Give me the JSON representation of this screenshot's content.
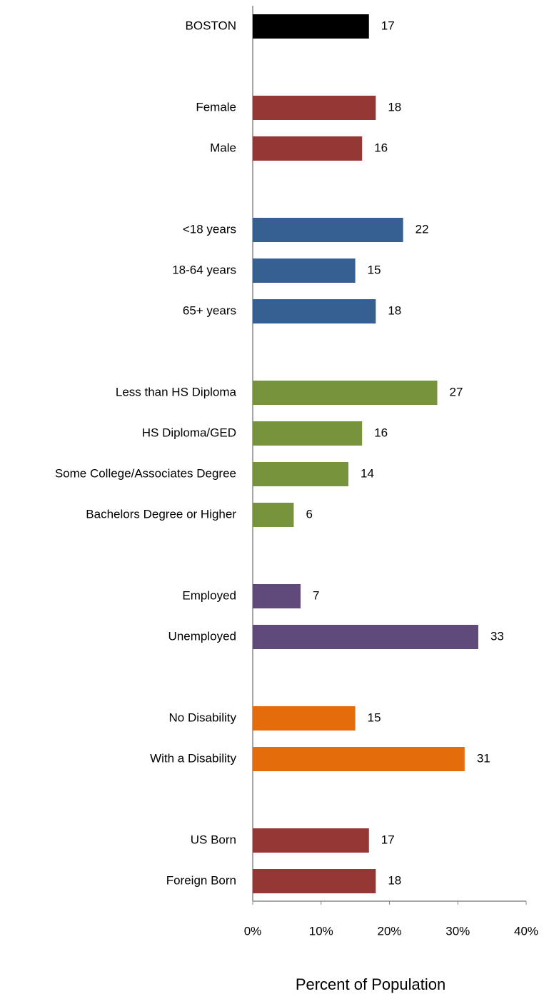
{
  "chart_data": {
    "type": "hbar",
    "xlabel": "Percent of Population",
    "categories": [
      "BOSTON",
      null,
      "Female",
      "Male",
      null,
      "<18 years",
      "18-64 years",
      "65+ years",
      null,
      "Less than HS Diploma",
      "HS Diploma/GED",
      "Some College/Associates Degree",
      "Bachelors Degree or Higher",
      null,
      "Employed",
      "Unemployed",
      null,
      "No Disability",
      "With a Disability",
      null,
      "US Born",
      "Foreign Born"
    ],
    "values": [
      17,
      null,
      18,
      16,
      null,
      22,
      15,
      18,
      null,
      27,
      16,
      14,
      6,
      null,
      7,
      33,
      null,
      15,
      31,
      null,
      17,
      18
    ],
    "colors": [
      "#000000",
      null,
      "#953735",
      "#953735",
      null,
      "#366092",
      "#366092",
      "#366092",
      null,
      "#77933c",
      "#77933c",
      "#77933c",
      "#77933c",
      null,
      "#604a7b",
      "#604a7b",
      null,
      "#e46c0a",
      "#e46c0a",
      null,
      "#953735",
      "#953735"
    ],
    "xlim": [
      0,
      40
    ],
    "xticks": [
      {
        "value": 0,
        "label": "0%"
      },
      {
        "value": 10,
        "label": "10%"
      },
      {
        "value": 20,
        "label": "20%"
      },
      {
        "value": 30,
        "label": "30%"
      },
      {
        "value": 40,
        "label": "40%"
      }
    ]
  }
}
